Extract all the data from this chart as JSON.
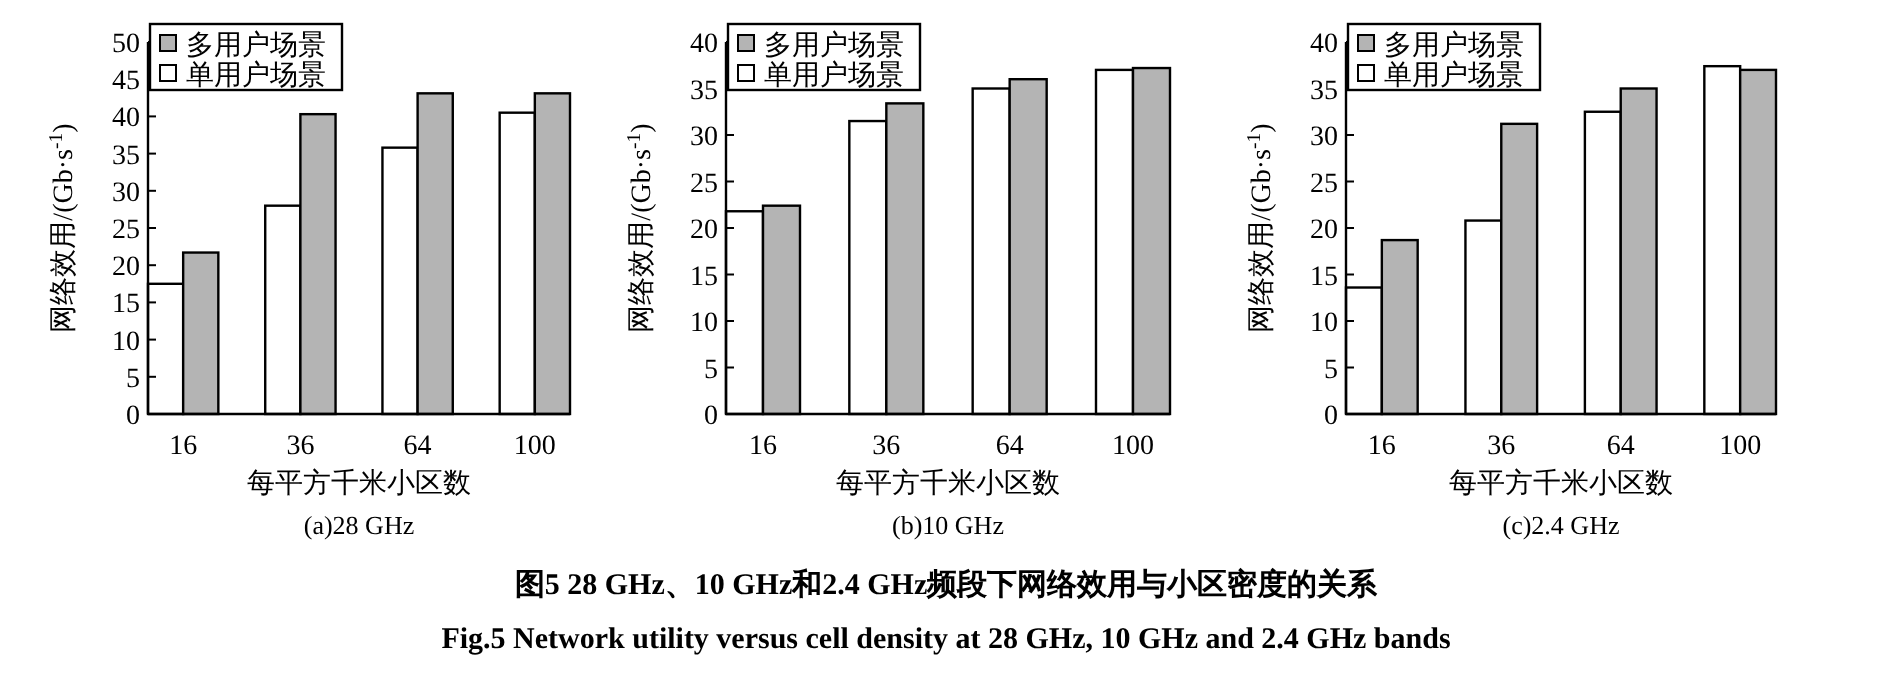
{
  "chart_data": [
    {
      "type": "bar",
      "title": "(a)28 GHz",
      "xlabel": "每平方千米小区数",
      "ylabel": "网络效用/(Gb·s$^{-1}$)",
      "categories": [
        "16",
        "36",
        "64",
        "100"
      ],
      "series": [
        {
          "name": "单用户场景",
          "color": "#ffffff",
          "values": [
            17.5,
            28,
            35.8,
            40.5
          ]
        },
        {
          "name": "多用户场景",
          "color": "#b4b4b4",
          "values": [
            21.7,
            40.3,
            43.1,
            43.1
          ]
        }
      ],
      "ylim": [
        0,
        50
      ],
      "yticks": [
        0,
        5,
        10,
        15,
        20,
        25,
        30,
        35,
        40,
        45,
        50
      ],
      "legend": "top left"
    },
    {
      "type": "bar",
      "title": "(b)10 GHz",
      "xlabel": "每平方千米小区数",
      "ylabel": "网络效用/(Gb·s$^{-1}$)",
      "categories": [
        "16",
        "36",
        "64",
        "100"
      ],
      "series": [
        {
          "name": "单用户场景",
          "color": "#ffffff",
          "values": [
            21.8,
            31.5,
            35,
            37
          ]
        },
        {
          "name": "多用户场景",
          "color": "#b4b4b4",
          "values": [
            22.4,
            33.4,
            36,
            37.2
          ]
        }
      ],
      "ylim": [
        0,
        40
      ],
      "yticks": [
        0,
        5,
        10,
        15,
        20,
        25,
        30,
        35,
        40
      ],
      "legend": "top left"
    },
    {
      "type": "bar",
      "title": "(c)2.4 GHz",
      "xlabel": "每平方千米小区数",
      "ylabel": "网络效用/(Gb·s$^{-1}$)",
      "categories": [
        "16",
        "36",
        "64",
        "100"
      ],
      "series": [
        {
          "name": "单用户场景",
          "color": "#ffffff",
          "values": [
            13.6,
            20.8,
            32.5,
            37.4
          ]
        },
        {
          "name": "多用户场景",
          "color": "#b4b4b4",
          "values": [
            18.7,
            31.2,
            35,
            37
          ]
        }
      ],
      "ylim": [
        0,
        40
      ],
      "yticks": [
        0,
        5,
        10,
        15,
        20,
        25,
        30,
        35,
        40
      ],
      "legend": "top left"
    },
    {
      "type": "other",
      "annotations": [
        "图5  28 GHz、10 GHz和2.4 GHz频段下网络效用与小区密度的关系",
        "Fig.5  Network utility versus cell density at 28 GHz, 10 GHz and 2.4 GHz bands"
      ]
    }
  ]
}
